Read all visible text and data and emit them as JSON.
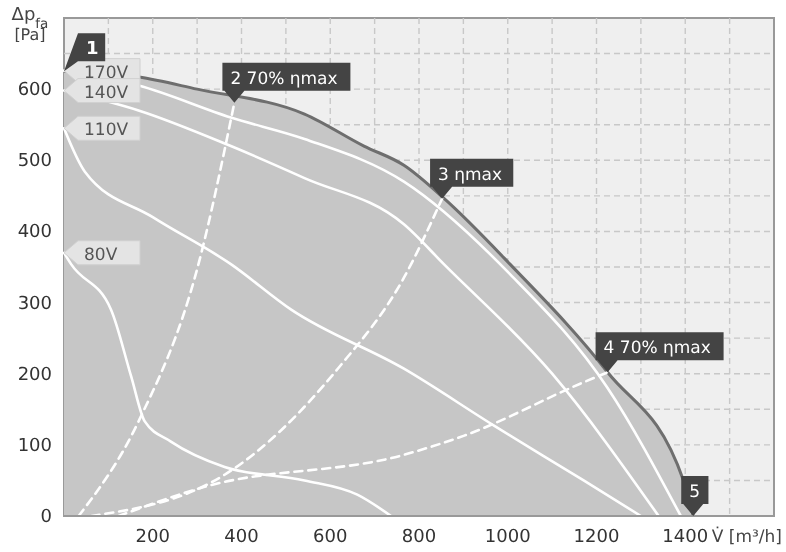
{
  "chart_data": {
    "type": "line",
    "xlabel": "V̇ [m³/h]",
    "ylabel": "Δp$_{fa}$ [Pa]",
    "xlim": [
      0,
      1600
    ],
    "ylim": [
      0,
      700
    ],
    "xticks": [
      {
        "value": 100,
        "label": null
      },
      200,
      {
        "value": 300,
        "label": null
      },
      400,
      {
        "value": 500,
        "label": null
      },
      600,
      {
        "value": 700,
        "label": null
      },
      800,
      {
        "value": 900,
        "label": null
      },
      1000,
      {
        "value": 1100,
        "label": null
      },
      1200,
      {
        "value": 1300,
        "label": null
      },
      1400,
      {
        "value": 1500,
        "label": null
      }
    ],
    "yticks": [
      0,
      {
        "value": 50,
        "label": null
      },
      100,
      {
        "value": 150,
        "label": null
      },
      200,
      {
        "value": 250,
        "label": null
      },
      300,
      {
        "value": 350,
        "label": null
      },
      400,
      {
        "value": 450,
        "label": null
      },
      500,
      {
        "value": 550,
        "label": null
      },
      600,
      {
        "value": 650,
        "label": null
      }
    ],
    "grid": true,
    "series": [
      {
        "type": "area",
        "color": "#6e6e6e",
        "x": [
          0,
          168,
          300,
          542,
          676,
          766,
          857,
          1005,
          1225,
          1396,
          1418
        ],
        "values": [
          625,
          617,
          600,
          565,
          520,
          493,
          446,
          354,
          202,
          50,
          0
        ]
      },
      {
        "name": "170V",
        "color": "#ffffff",
        "x": [
          0,
          168,
          376,
          542,
          766,
          1005,
          1225,
          1390
        ],
        "values": [
          626,
          605,
          560,
          530,
          470,
          340,
          180,
          0
        ]
      },
      {
        "name": "140V",
        "color": "#ffffff",
        "x": [
          0,
          168,
          376,
          542,
          766,
          856,
          1100,
          1340
        ],
        "values": [
          598,
          570,
          520,
          475,
          410,
          354,
          200,
          0
        ]
      },
      {
        "name": "110V",
        "color": "#ffffff",
        "x": [
          0,
          47,
          200,
          376,
          512,
          766,
          969,
          1171,
          1300
        ],
        "values": [
          545,
          484,
          420,
          354,
          290,
          207,
          127,
          50,
          0
        ]
      },
      {
        "name": "80V",
        "color": "#ffffff",
        "x": [
          0,
          16,
          106,
          151,
          182,
          240,
          362,
          542,
          661,
          737
        ],
        "values": [
          370,
          354,
          290,
          197,
          133,
          105,
          69,
          50,
          30,
          0
        ]
      },
      {
        "color": "#ffffff",
        "line_style": "dashed",
        "x": [
          33,
          168,
          303,
          384
        ],
        "values": [
          0,
          133,
          354,
          581
        ]
      },
      {
        "color": "#ffffff",
        "line_style": "dashed",
        "x": [
          62,
          362,
          617,
          766,
          852
        ],
        "values": [
          0,
          58,
          207,
          335,
          446
        ]
      },
      {
        "color": "#ffffff",
        "line_style": "dashed",
        "x": [
          123,
          317,
          766,
          902,
          1171,
          1225
        ],
        "values": [
          0,
          41,
          86,
          113,
          188,
          202
        ]
      }
    ],
    "annotations": [
      {
        "text": "1",
        "x": 0,
        "y": 625
      },
      {
        "text": "2 70% ηmax",
        "x": 384,
        "y": 581
      },
      {
        "text": "3 ηmax",
        "x": 852,
        "y": 446
      },
      {
        "text": "4 70% ηmax",
        "x": 1225,
        "y": 202
      },
      {
        "text": "5",
        "x": 1418,
        "y": 0
      }
    ]
  }
}
